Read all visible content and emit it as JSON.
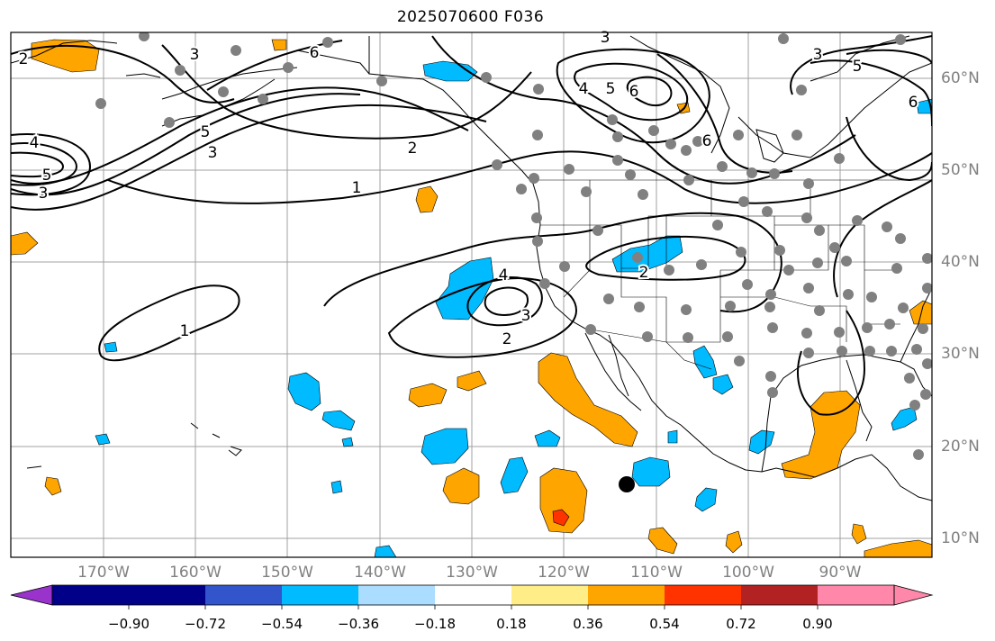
{
  "title": "2025070600 F036",
  "lon_labels": [
    "170°W",
    "160°W",
    "150°W",
    "140°W",
    "130°W",
    "120°W",
    "110°W",
    "100°W",
    "90°W"
  ],
  "lat_labels": [
    "60°N",
    "50°N",
    "40°N",
    "30°N",
    "20°N",
    "10°N"
  ],
  "contour_labels": [
    "2",
    "3",
    "6",
    "3",
    "4",
    "5",
    "3",
    "5",
    "3",
    "1",
    "2",
    "1",
    "4",
    "3",
    "2",
    "2",
    "4",
    "5",
    "6",
    "6",
    "3",
    "5",
    "6"
  ],
  "colorbar": {
    "tick_labels": [
      "−0.90",
      "−0.72",
      "−0.54",
      "−0.36",
      "−0.18",
      "0.18",
      "0.36",
      "0.54",
      "0.72",
      "0.90"
    ],
    "colors": [
      "#9933cc",
      "#000088",
      "#3355cc",
      "#00bbff",
      "#aaddff",
      "#ffffff",
      "#ffee88",
      "#ffa500",
      "#ff3300",
      "#b22222",
      "#ff88aa"
    ]
  },
  "fill_colors": {
    "light_blue": "#00bbff",
    "orange": "#ffa500",
    "red": "#ff3300",
    "station": "#808080"
  }
}
